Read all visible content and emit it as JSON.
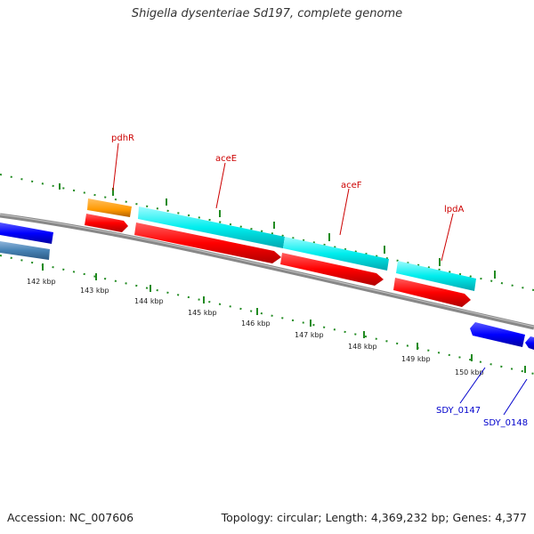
{
  "title": "Shigella dysenteriae Sd197, complete genome",
  "footer": {
    "accession": "Accession: NC_007606",
    "summary": "Topology: circular; Length: 4,369,232 bp; Genes: 4,377"
  },
  "scale_ticks": [
    "142 kbp",
    "143 kbp",
    "144 kbp",
    "145 kbp",
    "146 kbp",
    "147 kbp",
    "148 kbp",
    "149 kbp",
    "150 kbp"
  ],
  "gene_labels": {
    "pdhR": "pdhR",
    "aceE": "aceE",
    "aceF": "aceF",
    "lpdA": "lpdA",
    "sdy0147": "SDY_0147",
    "sdy0148": "SDY_0148"
  },
  "colors": {
    "backbone": "#888888",
    "cds": "#ff0000",
    "gene": "#00e5ee",
    "regulator": "#ff9900",
    "other_gene": "#0000ff",
    "other_gene_light": "#4682b4",
    "tick": "#228b22",
    "label_red": "#cc0000",
    "label_blue": "#0000cc"
  }
}
